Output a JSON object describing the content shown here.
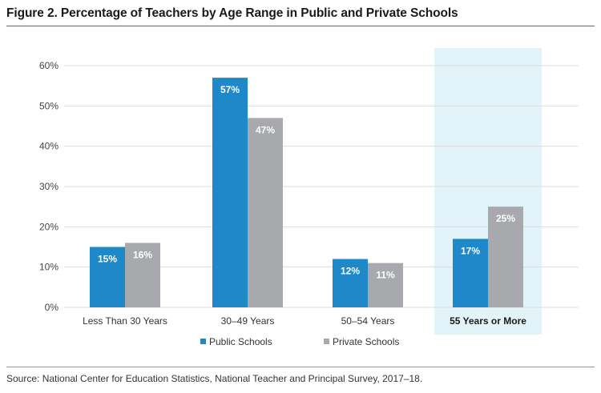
{
  "title": "Figure 2. Percentage of Teachers by Age Range in Public and Private Schools",
  "source": "Source: National Center for Education Statistics, National Teacher and Principal Survey, 2017–18.",
  "colors": {
    "public": "#1e88c8",
    "private": "#a7a9ac",
    "highlight": "#e3f3fa",
    "grid": "#dddddd"
  },
  "chart_data": {
    "type": "bar",
    "categories": [
      "Less Than 30 Years",
      "30–49 Years",
      "50–54 Years",
      "55 Years or More"
    ],
    "highlighted_category": "55 Years or More",
    "series": [
      {
        "name": "Public Schools",
        "values": [
          15,
          57,
          12,
          17
        ],
        "labels": [
          "15%",
          "57%",
          "12%",
          "17%"
        ]
      },
      {
        "name": "Private Schools",
        "values": [
          16,
          47,
          11,
          25
        ],
        "labels": [
          "16%",
          "47%",
          "11%",
          "25%"
        ]
      }
    ],
    "ylim": [
      0,
      60
    ],
    "yticks": [
      0,
      10,
      20,
      30,
      40,
      50,
      60
    ],
    "ytick_labels": [
      "0%",
      "10%",
      "20%",
      "30%",
      "40%",
      "50%",
      "60%"
    ],
    "grid": true,
    "legend_position": "bottom-center"
  }
}
